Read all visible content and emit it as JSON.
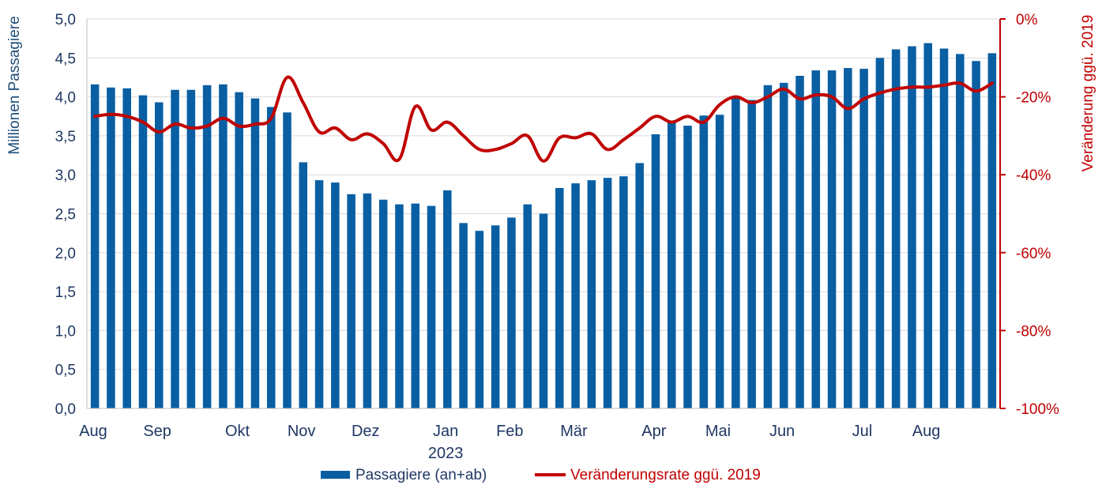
{
  "chart_data": {
    "type": "bar+line",
    "title": "",
    "ylabel": "Millionen Passagiere",
    "y2label": "Veränderung ggü. 2019",
    "ylim": [
      0,
      5
    ],
    "y2lim": [
      -100,
      0
    ],
    "yticks": [
      "0,0",
      "0,5",
      "1,0",
      "1,5",
      "2,0",
      "2,5",
      "3,0",
      "3,5",
      "4,0",
      "4,5",
      "5,0"
    ],
    "y2ticks": [
      "-100%",
      "-80%",
      "-60%",
      "-40%",
      "-20%",
      "0%"
    ],
    "xlabels": [
      {
        "label": "Aug",
        "index": 0
      },
      {
        "label": "Sep",
        "index": 4
      },
      {
        "label": "Okt",
        "index": 9
      },
      {
        "label": "Nov",
        "index": 13
      },
      {
        "label": "Dez",
        "index": 17
      },
      {
        "label": "Jan",
        "index": 22
      },
      {
        "label": "Feb",
        "index": 26
      },
      {
        "label": "Mär",
        "index": 30
      },
      {
        "label": "Apr",
        "index": 35
      },
      {
        "label": "Mai",
        "index": 39
      },
      {
        "label": "Jun",
        "index": 43
      },
      {
        "label": "Jul",
        "index": 48
      },
      {
        "label": "Aug",
        "index": 52
      }
    ],
    "year_label": {
      "label": "2023",
      "index": 22
    },
    "grid": true,
    "legend_position": "bottom-center",
    "series": [
      {
        "name": "Passagiere (an+ab)",
        "type": "bar",
        "color": "#0A5FA3",
        "values": [
          4.16,
          4.12,
          4.11,
          4.02,
          3.93,
          4.09,
          4.09,
          4.15,
          4.16,
          4.06,
          3.98,
          3.87,
          3.8,
          3.16,
          2.93,
          2.9,
          2.75,
          2.76,
          2.68,
          2.62,
          2.63,
          2.6,
          2.8,
          2.38,
          2.28,
          2.35,
          2.45,
          2.62,
          2.5,
          2.83,
          2.89,
          2.93,
          2.96,
          2.98,
          3.15,
          3.52,
          3.67,
          3.63,
          3.76,
          3.77,
          4.0,
          3.96,
          4.15,
          4.18,
          4.27,
          4.34,
          4.34,
          4.37,
          4.36,
          4.5,
          4.61,
          4.65,
          4.69,
          4.62,
          4.55,
          4.46,
          4.56
        ]
      },
      {
        "name": "Veränderungsrate ggü. 2019",
        "type": "line",
        "color": "#C00000",
        "values": [
          -25,
          -24.5,
          -25,
          -26.5,
          -29,
          -27,
          -28,
          -27.5,
          -25.5,
          -27.5,
          -27,
          -25.5,
          -15,
          -21.5,
          -29,
          -28,
          -31,
          -29.5,
          -32,
          -36,
          -22.5,
          -28.5,
          -26.5,
          -30,
          -33.5,
          -33.5,
          -32,
          -30,
          -36.5,
          -30.5,
          -30.5,
          -29.5,
          -33.5,
          -31,
          -28,
          -25,
          -26.5,
          -25,
          -26.5,
          -22,
          -20,
          -21.5,
          -20,
          -18,
          -20.5,
          -19.5,
          -20,
          -23,
          -20.5,
          -19,
          -18,
          -17.5,
          -17.5,
          -17,
          -16.5,
          -18.5,
          -16.5
        ]
      }
    ]
  }
}
